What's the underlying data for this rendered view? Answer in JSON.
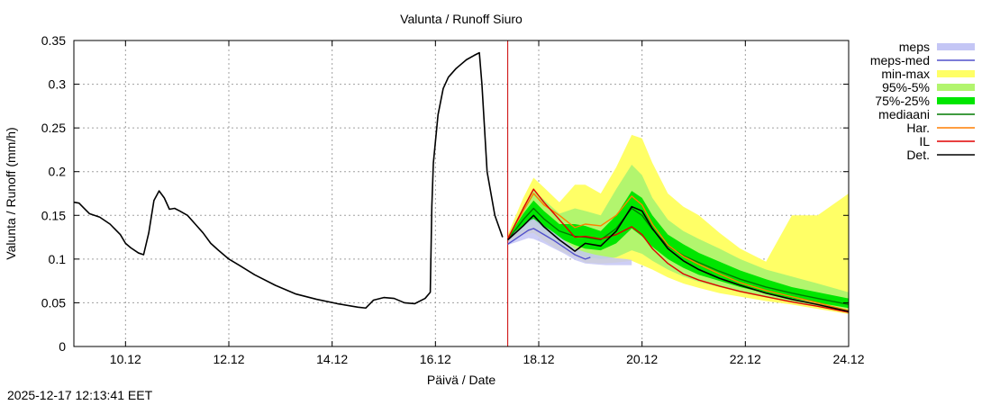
{
  "timestamp": "2025-12-17 12:13:41 EET",
  "chart_data": {
    "type": "line",
    "title": "Valunta / Runoff  Siuro",
    "xlabel": "Päivä / Date",
    "ylabel": "Valunta / Runoff (mm/h)",
    "xlim": [
      9.1,
      24.1
    ],
    "ylim": [
      0,
      0.35
    ],
    "grid": true,
    "legend_position": "right",
    "forecast_start": 17.5,
    "x_ticks": [
      {
        "value": 10.1,
        "label": "10.12"
      },
      {
        "value": 12.1,
        "label": "12.12"
      },
      {
        "value": 14.1,
        "label": "14.12"
      },
      {
        "value": 16.1,
        "label": "16.12"
      },
      {
        "value": 18.1,
        "label": "18.12"
      },
      {
        "value": 20.1,
        "label": "20.12"
      },
      {
        "value": 22.1,
        "label": "22.12"
      },
      {
        "value": 24.1,
        "label": "24.12"
      }
    ],
    "y_ticks": [
      {
        "value": 0,
        "label": "0"
      },
      {
        "value": 0.05,
        "label": "0.05"
      },
      {
        "value": 0.1,
        "label": "0.1"
      },
      {
        "value": 0.15,
        "label": "0.15"
      },
      {
        "value": 0.2,
        "label": "0.2"
      },
      {
        "value": 0.25,
        "label": "0.25"
      },
      {
        "value": 0.3,
        "label": "0.3"
      },
      {
        "value": 0.35,
        "label": "0.35"
      }
    ],
    "legend": [
      {
        "key": "meps",
        "label": "meps",
        "type": "band",
        "color": "#c4c6f5"
      },
      {
        "key": "meps_med",
        "label": "meps-med",
        "type": "line",
        "color": "#5050cc"
      },
      {
        "key": "minmax",
        "label": "min-max",
        "type": "band",
        "color": "#ffff66"
      },
      {
        "key": "p95_5",
        "label": "95%-5%",
        "type": "band",
        "color": "#b2f56e"
      },
      {
        "key": "p75_25",
        "label": "75%-25%",
        "type": "band",
        "color": "#00e600"
      },
      {
        "key": "median",
        "label": "mediaani",
        "type": "line",
        "color": "#007a00"
      },
      {
        "key": "har",
        "label": "Har.",
        "type": "line",
        "color": "#ff7f00"
      },
      {
        "key": "il",
        "label": "IL",
        "type": "line",
        "color": "#e00000"
      },
      {
        "key": "det",
        "label": "Det.",
        "type": "line",
        "color": "#000000"
      }
    ],
    "observed": {
      "name": "Det. (history)",
      "x": [
        9.1,
        9.2,
        9.3,
        9.4,
        9.6,
        9.8,
        10.0,
        10.1,
        10.2,
        10.35,
        10.45,
        10.55,
        10.65,
        10.75,
        10.85,
        10.95,
        11.05,
        11.15,
        11.3,
        11.45,
        11.6,
        11.75,
        11.9,
        12.1,
        12.3,
        12.6,
        13.0,
        13.4,
        13.8,
        14.2,
        14.6,
        14.75,
        14.9,
        15.1,
        15.3,
        15.5,
        15.7,
        15.9,
        16.0,
        16.03,
        16.06,
        16.15,
        16.25,
        16.35,
        16.5,
        16.7,
        16.85,
        16.95,
        17.0,
        17.1,
        17.25,
        17.4
      ],
      "y": [
        0.165,
        0.164,
        0.158,
        0.152,
        0.148,
        0.14,
        0.128,
        0.118,
        0.113,
        0.107,
        0.105,
        0.13,
        0.167,
        0.178,
        0.17,
        0.157,
        0.158,
        0.155,
        0.15,
        0.14,
        0.13,
        0.118,
        0.11,
        0.1,
        0.093,
        0.082,
        0.07,
        0.06,
        0.054,
        0.049,
        0.045,
        0.044,
        0.053,
        0.056,
        0.055,
        0.05,
        0.049,
        0.055,
        0.062,
        0.16,
        0.21,
        0.265,
        0.295,
        0.308,
        0.318,
        0.328,
        0.333,
        0.336,
        0.3,
        0.2,
        0.15,
        0.125
      ]
    },
    "bands": {
      "x": [
        17.5,
        17.8,
        18.0,
        18.2,
        18.5,
        18.8,
        19.0,
        19.3,
        19.6,
        19.9,
        20.1,
        20.3,
        20.6,
        20.9,
        21.2,
        21.6,
        22.0,
        22.5,
        23.0,
        23.5,
        24.1
      ],
      "min": [
        0.119,
        0.128,
        0.13,
        0.121,
        0.11,
        0.102,
        0.096,
        0.095,
        0.096,
        0.098,
        0.093,
        0.088,
        0.079,
        0.072,
        0.067,
        0.061,
        0.057,
        0.052,
        0.048,
        0.043,
        0.037
      ],
      "max": [
        0.128,
        0.17,
        0.193,
        0.182,
        0.165,
        0.185,
        0.185,
        0.175,
        0.205,
        0.242,
        0.238,
        0.21,
        0.175,
        0.16,
        0.15,
        0.13,
        0.112,
        0.097,
        0.15,
        0.15,
        0.175
      ],
      "p5": [
        0.12,
        0.132,
        0.137,
        0.128,
        0.118,
        0.108,
        0.102,
        0.1,
        0.102,
        0.11,
        0.106,
        0.098,
        0.088,
        0.08,
        0.074,
        0.068,
        0.062,
        0.056,
        0.051,
        0.046,
        0.04
      ],
      "p95": [
        0.126,
        0.16,
        0.178,
        0.168,
        0.152,
        0.158,
        0.155,
        0.15,
        0.18,
        0.208,
        0.196,
        0.17,
        0.145,
        0.132,
        0.123,
        0.112,
        0.1,
        0.088,
        0.08,
        0.072,
        0.062
      ],
      "p25": [
        0.121,
        0.138,
        0.145,
        0.135,
        0.124,
        0.116,
        0.112,
        0.11,
        0.118,
        0.135,
        0.126,
        0.114,
        0.1,
        0.09,
        0.082,
        0.075,
        0.068,
        0.061,
        0.055,
        0.05,
        0.044
      ],
      "p75": [
        0.124,
        0.152,
        0.167,
        0.155,
        0.14,
        0.14,
        0.138,
        0.132,
        0.15,
        0.178,
        0.17,
        0.15,
        0.128,
        0.117,
        0.107,
        0.097,
        0.087,
        0.077,
        0.068,
        0.062,
        0.055
      ],
      "meps_x": [
        17.5,
        17.7,
        17.9,
        18.0,
        18.2,
        18.4,
        18.6,
        18.8,
        19.0,
        19.2,
        19.4,
        19.6,
        19.8,
        19.9
      ],
      "meps_min": [
        0.116,
        0.12,
        0.124,
        0.123,
        0.118,
        0.112,
        0.106,
        0.099,
        0.095,
        0.094,
        0.093,
        0.093,
        0.093,
        0.093
      ],
      "meps_max": [
        0.125,
        0.134,
        0.144,
        0.146,
        0.138,
        0.13,
        0.121,
        0.112,
        0.108,
        0.105,
        0.103,
        0.101,
        0.1,
        0.099
      ]
    },
    "series": [
      {
        "key": "meps_med",
        "name": "meps-med",
        "x": [
          17.5,
          17.7,
          17.9,
          18.0,
          18.2,
          18.4,
          18.6,
          18.8,
          19.0,
          19.1
        ],
        "y": [
          0.117,
          0.125,
          0.133,
          0.135,
          0.128,
          0.121,
          0.113,
          0.105,
          0.1,
          0.102
        ]
      },
      {
        "key": "median",
        "name": "mediaani",
        "x": [
          17.5,
          17.8,
          18.0,
          18.2,
          18.5,
          18.8,
          19.0,
          19.3,
          19.6,
          19.9,
          20.1,
          20.3,
          20.6,
          20.9,
          21.2,
          21.6,
          22.0,
          22.5,
          23.0,
          23.5,
          24.1
        ],
        "y": [
          0.122,
          0.145,
          0.158,
          0.146,
          0.132,
          0.126,
          0.125,
          0.122,
          0.135,
          0.158,
          0.15,
          0.134,
          0.115,
          0.104,
          0.096,
          0.086,
          0.077,
          0.068,
          0.061,
          0.055,
          0.048
        ]
      },
      {
        "key": "har",
        "name": "Har.",
        "x": [
          17.5,
          17.8,
          18.0,
          18.2,
          18.5,
          18.8,
          19.0,
          19.3,
          19.6,
          19.9,
          20.1,
          20.3,
          20.6,
          20.9,
          21.2,
          21.6,
          22.0,
          22.5,
          23.0,
          23.5,
          24.1
        ],
        "y": [
          0.124,
          0.155,
          0.175,
          0.162,
          0.15,
          0.136,
          0.14,
          0.138,
          0.15,
          0.172,
          0.162,
          0.14,
          0.116,
          0.103,
          0.094,
          0.083,
          0.073,
          0.064,
          0.057,
          0.05,
          0.041
        ]
      },
      {
        "key": "il",
        "name": "IL",
        "x": [
          17.5,
          17.8,
          18.0,
          18.2,
          18.5,
          18.8,
          19.0,
          19.3,
          19.6,
          19.9,
          20.1,
          20.3,
          20.6,
          20.9,
          21.2,
          21.6,
          22.0,
          22.5,
          23.0,
          23.5,
          24.1
        ],
        "y": [
          0.123,
          0.158,
          0.18,
          0.165,
          0.145,
          0.125,
          0.126,
          0.123,
          0.128,
          0.137,
          0.128,
          0.112,
          0.095,
          0.083,
          0.076,
          0.069,
          0.063,
          0.057,
          0.051,
          0.046,
          0.039
        ]
      },
      {
        "key": "det",
        "name": "Det.",
        "x": [
          17.5,
          17.8,
          18.0,
          18.2,
          18.5,
          18.8,
          19.0,
          19.3,
          19.6,
          19.9,
          20.1,
          20.3,
          20.6,
          20.9,
          21.2,
          21.6,
          22.0,
          22.5,
          23.0,
          23.5,
          24.1
        ],
        "y": [
          0.122,
          0.138,
          0.15,
          0.137,
          0.122,
          0.109,
          0.118,
          0.115,
          0.132,
          0.16,
          0.155,
          0.135,
          0.112,
          0.098,
          0.088,
          0.078,
          0.07,
          0.061,
          0.054,
          0.048,
          0.04
        ]
      }
    ]
  }
}
